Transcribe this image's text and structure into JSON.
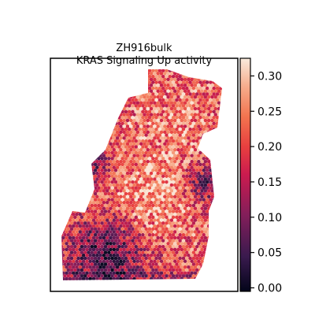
{
  "chart_data": {
    "type": "heatmap",
    "title_lines": [
      "ZH916bulk",
      "KRAS Signaling Up activity"
    ],
    "colorbar": {
      "ticks": [
        0.0,
        0.05,
        0.1,
        0.15,
        0.2,
        0.25,
        0.3
      ],
      "tick_labels": [
        "0.00",
        "0.05",
        "0.10",
        "0.15",
        "0.20",
        "0.25",
        "0.30"
      ],
      "range": [
        -0.005,
        0.325
      ],
      "colormap": "rocket"
    },
    "axes": {
      "x_ticks": false,
      "y_ticks": false,
      "grid": false
    },
    "colors": {
      "low": "#0c0a22",
      "mid_low": "#6e1e5a",
      "mid": "#e3324c",
      "mid_high": "#f3845f",
      "high": "#fbe5d7"
    }
  }
}
